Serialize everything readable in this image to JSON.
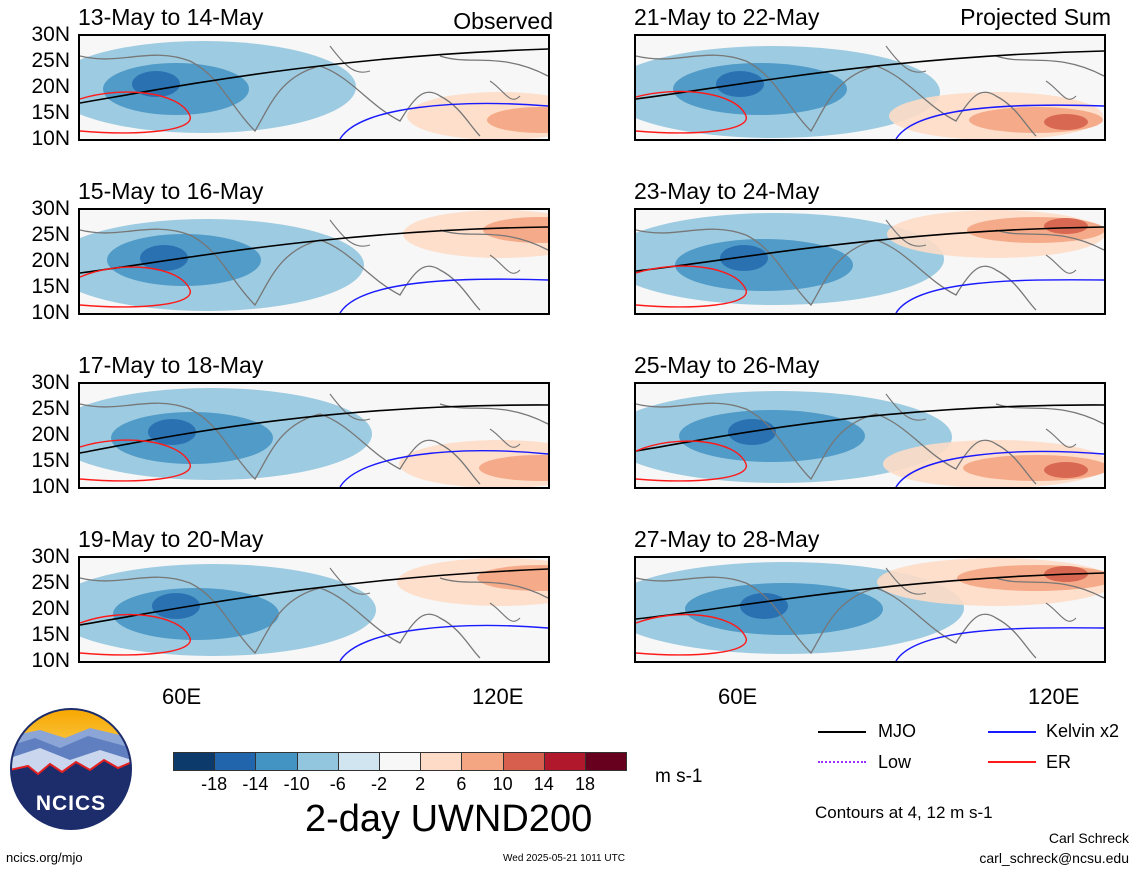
{
  "panels_left": [
    {
      "title": "13-May to 14-May",
      "corner": "Observed"
    },
    {
      "title": "15-May to 16-May",
      "corner": ""
    },
    {
      "title": "17-May to 18-May",
      "corner": ""
    },
    {
      "title": "19-May to 20-May",
      "corner": ""
    }
  ],
  "panels_right": [
    {
      "title": "21-May to 22-May",
      "corner": "Projected Sum"
    },
    {
      "title": "23-May to 24-May",
      "corner": ""
    },
    {
      "title": "25-May to 26-May",
      "corner": ""
    },
    {
      "title": "27-May to 28-May",
      "corner": ""
    }
  ],
  "lat_labels": [
    "30N",
    "25N",
    "20N",
    "15N",
    "10N"
  ],
  "lon_labels": [
    "60E",
    "120E"
  ],
  "colorbar": {
    "labels": [
      "-18",
      "-14",
      "-10",
      "-6",
      "-2",
      "2",
      "6",
      "10",
      "14",
      "18"
    ],
    "colors": [
      "#0b3a6b",
      "#2166ac",
      "#4393c3",
      "#92c5de",
      "#d1e5f0",
      "#f7f7f7",
      "#fddbc7",
      "#f4a582",
      "#d6604d",
      "#b2182b",
      "#67001f"
    ],
    "units": "m s-1"
  },
  "legend": {
    "mjo": "MJO",
    "kelvin": "Kelvin x2",
    "low": "Low",
    "er": "ER",
    "colors": {
      "mjo": "#000000",
      "kelvin": "#1a1aff",
      "low": "#9933ff",
      "er": "#ff1a1a"
    },
    "contours": "Contours at 4, 12 m s-1"
  },
  "main_title": "2-day UWND200",
  "logo_text": "NCICS",
  "footer": {
    "url": "ncics.org/mjo",
    "timestamp": "Wed 2025-05-21 1011 UTC",
    "author": "Carl Schreck",
    "email": "carl_schreck@ncsu.edu"
  }
}
